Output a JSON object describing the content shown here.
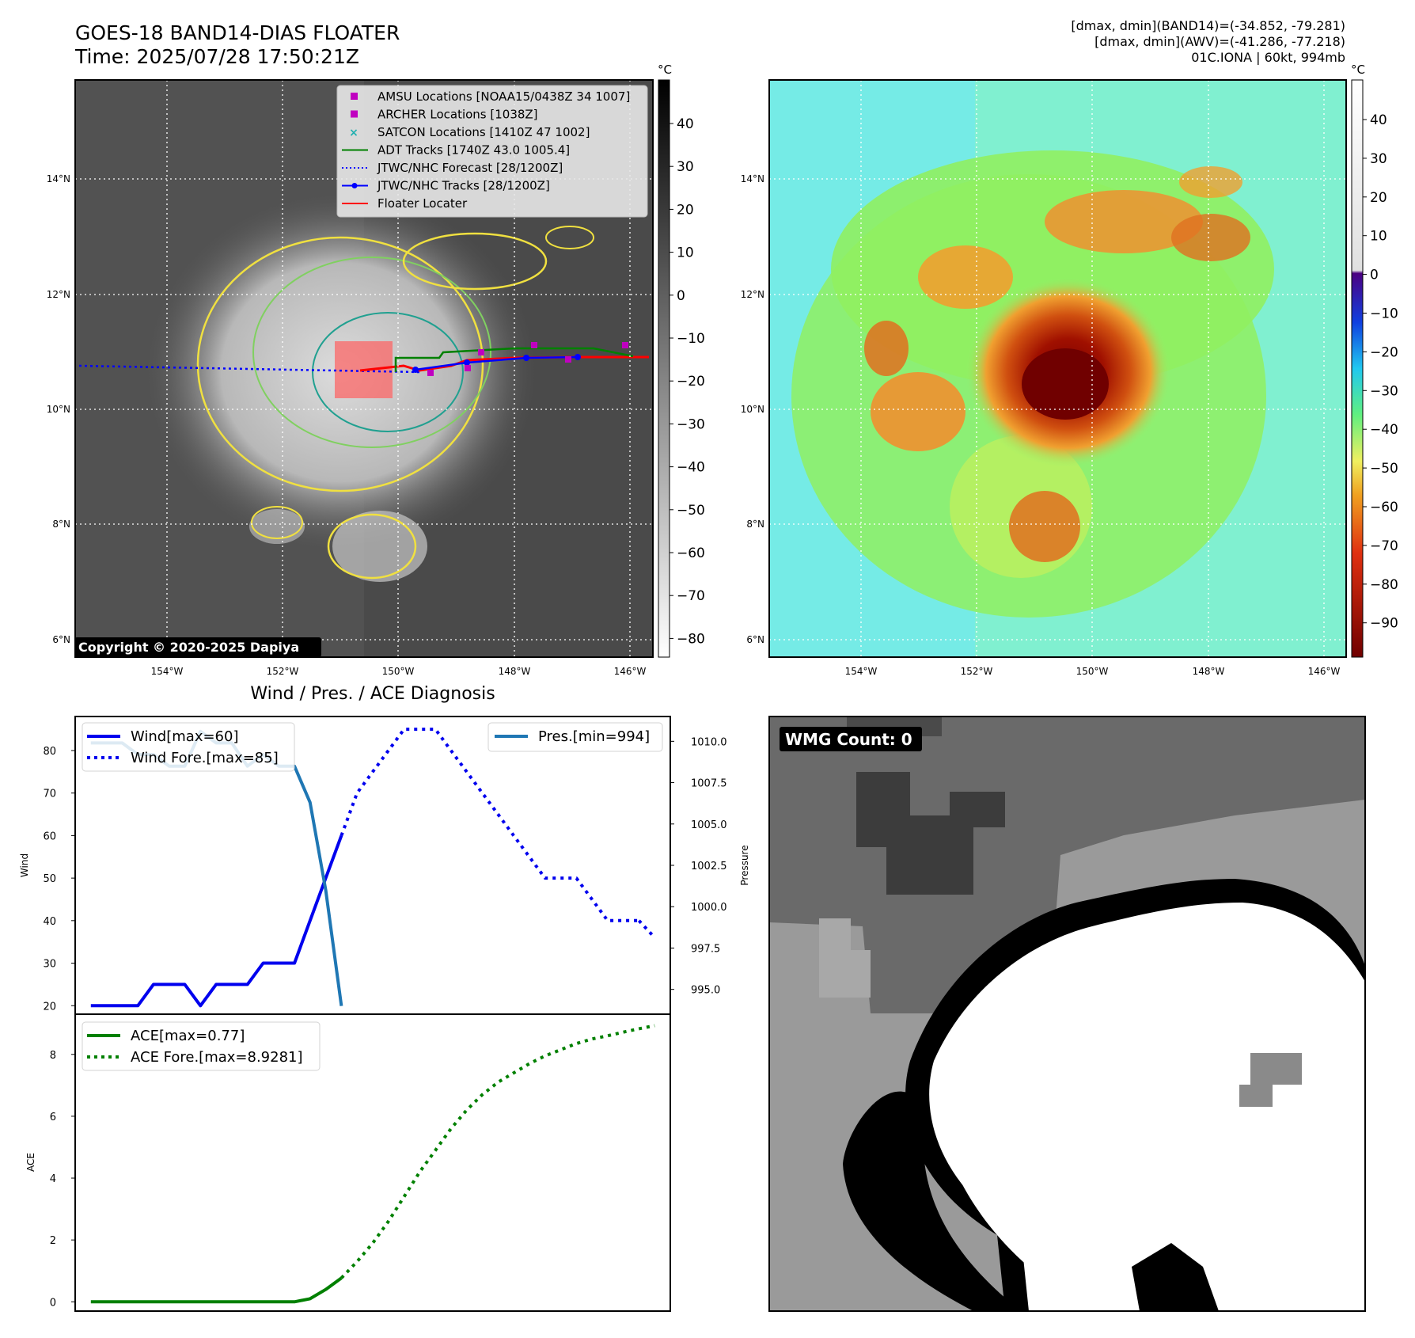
{
  "header": {
    "title_line1": "GOES-18 BAND14-DIAS FLOATER",
    "title_line2": "Time: 2025/07/28 17:50:21Z",
    "info_line1": "[dmax, dmin](BAND14)=(-34.852, -79.281)",
    "info_line2": "[dmax, dmin](AWV)=(-41.286, -77.218)",
    "info_line3": "01C.IONA | 60kt, 994mb"
  },
  "copyright": "Copyright © 2020-2025 Dapiya",
  "map": {
    "lat_labels": [
      "14°N",
      "12°N",
      "10°N",
      "8°N",
      "6°N"
    ],
    "lon_labels": [
      "154°W",
      "152°W",
      "150°W",
      "148°W",
      "146°W"
    ]
  },
  "colorbar_ir": {
    "unit": "°C",
    "ticks": [
      "40",
      "30",
      "20",
      "10",
      "0",
      "−10",
      "−20",
      "−30",
      "−40",
      "−50",
      "−60",
      "−70",
      "−80"
    ]
  },
  "colorbar_awv": {
    "unit": "°C",
    "ticks": [
      "40",
      "30",
      "20",
      "10",
      "0",
      "−10",
      "−20",
      "−30",
      "−40",
      "−50",
      "−60",
      "−70",
      "−80",
      "−90"
    ]
  },
  "legend_ir": [
    {
      "label": "AMSU Locations [NOAA15/0438Z 34 1007]",
      "marker": "square",
      "color": "#c000c0"
    },
    {
      "label": "ARCHER Locations [1038Z]",
      "marker": "square",
      "color": "#c000c0"
    },
    {
      "label": "SATCON Locations [1410Z 47 1002]",
      "marker": "x",
      "color": "#20b0b0"
    },
    {
      "label": "ADT Tracks [1740Z 43.0 1005.4]",
      "marker": "line",
      "color": "#008000"
    },
    {
      "label": "JTWC/NHC Forecast [28/1200Z]",
      "marker": "dotted",
      "color": "#0000ff"
    },
    {
      "label": "JTWC/NHC Tracks [28/1200Z]",
      "marker": "line-dot",
      "color": "#0000ff"
    },
    {
      "label": "Floater Locater",
      "marker": "line",
      "color": "#ff0000"
    }
  ],
  "wmg": {
    "label": "WMG Count: 0"
  },
  "chart_data": [
    {
      "type": "line",
      "title": "Wind / Pres. / ACE Diagnosis",
      "ylabel": "Wind",
      "y2label": "Pressure",
      "ylim": [
        18,
        88
      ],
      "y2lim": [
        993.5,
        1011.5
      ],
      "yticks": [
        "80",
        "70",
        "60",
        "50",
        "40",
        "30",
        "20"
      ],
      "y2ticks": [
        "1010.0",
        "1007.5",
        "1005.0",
        "1002.5",
        "1000.0",
        "997.5",
        "995.0"
      ],
      "legend_left": [
        "Wind[max=60]",
        "Wind Fore.[max=85]"
      ],
      "legend_right": [
        "Pres.[min=994]"
      ],
      "series": [
        {
          "name": "Wind[max=60]",
          "style": "solid",
          "color": "#0000ee",
          "x": [
            0,
            1,
            2,
            3,
            4,
            5,
            6,
            7,
            8,
            9,
            10,
            11,
            12,
            13,
            14,
            15,
            16
          ],
          "values": [
            20,
            20,
            20,
            20,
            25,
            25,
            25,
            20,
            25,
            25,
            25,
            30,
            30,
            30,
            40,
            50,
            60
          ]
        },
        {
          "name": "Wind Fore.[max=85]",
          "style": "dotted",
          "color": "#0000ee",
          "x": [
            16,
            17,
            18,
            19,
            20,
            21,
            22,
            23,
            24,
            25,
            26,
            27,
            28,
            29,
            30,
            31,
            32,
            33,
            34,
            35
          ],
          "values": [
            60,
            70,
            75,
            80,
            85,
            85,
            85,
            80,
            75,
            70,
            65,
            60,
            55,
            50,
            50,
            50,
            45,
            40,
            40,
            40
          ]
        },
        {
          "name": "Pres.[min=994]",
          "style": "solid",
          "color": "#1f77b4",
          "axis": "y2",
          "x": [
            0,
            1,
            2,
            3,
            4,
            5,
            6,
            7,
            8,
            9,
            10,
            11,
            12,
            13,
            14,
            15,
            16
          ],
          "values": [
            1009.9,
            1009.9,
            1009.9,
            1009.2,
            1009.2,
            1008.5,
            1008.5,
            1010.6,
            1009.9,
            1009.9,
            1008.5,
            1009.2,
            1008.5,
            1008.5,
            1006.3,
            1001.0,
            994.0
          ]
        },
        {
          "name": "Wind Fore. tail",
          "style": "dotted",
          "color": "#0000ee",
          "x": [
            35,
            36
          ],
          "values": [
            40,
            36
          ]
        }
      ],
      "xlim": [
        -1,
        37
      ]
    },
    {
      "type": "line",
      "ylabel": "ACE",
      "ylim": [
        -0.3,
        9.3
      ],
      "yticks": [
        "8",
        "6",
        "4",
        "2",
        "0"
      ],
      "legend": [
        "ACE[max=0.77]",
        "ACE Fore.[max=8.9281]"
      ],
      "series": [
        {
          "name": "ACE[max=0.77]",
          "style": "solid",
          "color": "#008000",
          "x": [
            0,
            1,
            2,
            3,
            4,
            5,
            6,
            7,
            8,
            9,
            10,
            11,
            12,
            13,
            14,
            15,
            16
          ],
          "values": [
            0,
            0,
            0,
            0,
            0,
            0,
            0,
            0,
            0,
            0,
            0,
            0,
            0,
            0,
            0.1,
            0.4,
            0.77
          ]
        },
        {
          "name": "ACE Fore.[max=8.9281]",
          "style": "dotted",
          "color": "#008000",
          "x": [
            16,
            17,
            18,
            19,
            20,
            21,
            22,
            23,
            24,
            25,
            26,
            27,
            28,
            29,
            30,
            31,
            32,
            33,
            34,
            35,
            36
          ],
          "values": [
            0.77,
            1.3,
            1.9,
            2.6,
            3.4,
            4.2,
            4.9,
            5.6,
            6.2,
            6.7,
            7.1,
            7.4,
            7.7,
            7.95,
            8.15,
            8.35,
            8.5,
            8.6,
            8.72,
            8.83,
            8.93
          ]
        }
      ],
      "xlim": [
        -1,
        37
      ]
    }
  ]
}
